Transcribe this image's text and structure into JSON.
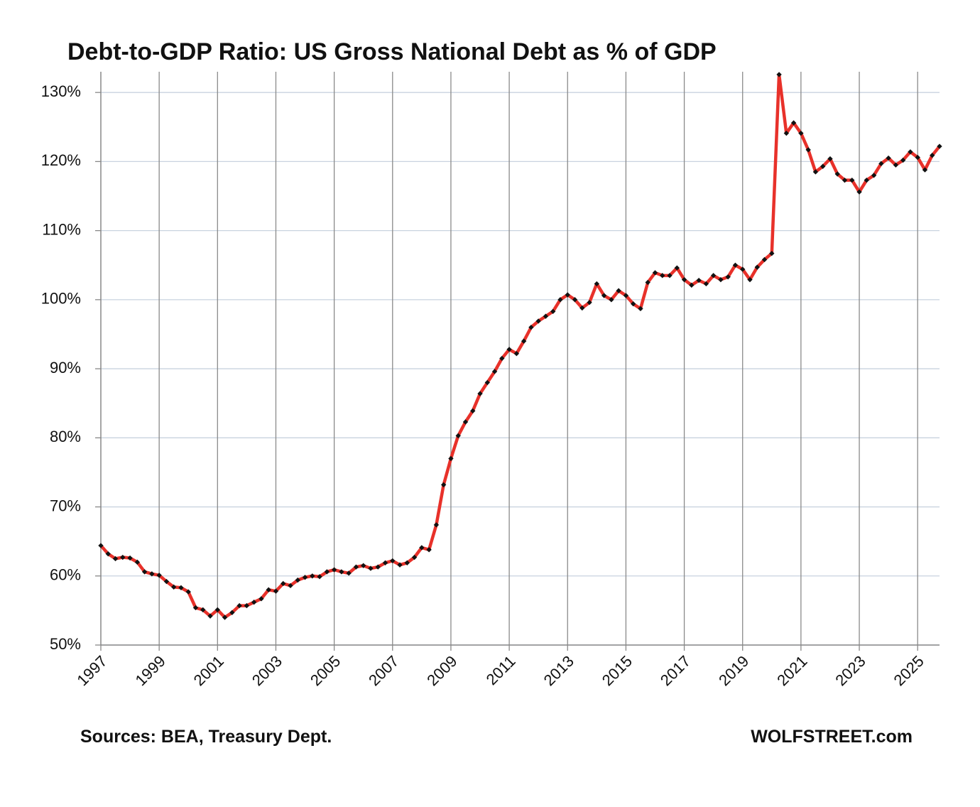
{
  "chart_data": {
    "type": "line",
    "title": "Debt-to-GDP Ratio: US Gross National Debt as % of GDP",
    "source": "Sources: BEA, Treasury Dept.",
    "credit": "WOLFSTREET.com",
    "categories": [
      "1997",
      null,
      null,
      null,
      null,
      null,
      null,
      null,
      "1999",
      null,
      null,
      null,
      null,
      null,
      null,
      null,
      "2001",
      null,
      null,
      null,
      null,
      null,
      null,
      null,
      "2003",
      null,
      null,
      null,
      null,
      null,
      null,
      null,
      "2005",
      null,
      null,
      null,
      null,
      null,
      null,
      null,
      "2007",
      null,
      null,
      null,
      null,
      null,
      null,
      null,
      "2009",
      null,
      null,
      null,
      null,
      null,
      null,
      null,
      "2011",
      null,
      null,
      null,
      null,
      null,
      null,
      null,
      "2013",
      null,
      null,
      null,
      null,
      null,
      null,
      null,
      "2015",
      null,
      null,
      null,
      null,
      null,
      null,
      null,
      "2017",
      null,
      null,
      null,
      null,
      null,
      null,
      null,
      "2019",
      null,
      null,
      null,
      null,
      null,
      null,
      null,
      "2021",
      null,
      null,
      null,
      null,
      null,
      null,
      null,
      "2023",
      null,
      null,
      null,
      null,
      null,
      null,
      null,
      "2025",
      null,
      null,
      null
    ],
    "values": [
      64.4,
      63.2,
      62.5,
      62.7,
      62.6,
      62.0,
      60.6,
      60.3,
      60.1,
      59.2,
      58.4,
      58.3,
      57.7,
      55.4,
      55.1,
      54.2,
      55.1,
      54.0,
      54.7,
      55.7,
      55.7,
      56.2,
      56.7,
      58.0,
      57.8,
      58.9,
      58.6,
      59.4,
      59.8,
      60.0,
      59.9,
      60.6,
      60.9,
      60.6,
      60.4,
      61.3,
      61.5,
      61.1,
      61.3,
      61.9,
      62.2,
      61.6,
      61.9,
      62.7,
      64.1,
      63.8,
      67.4,
      73.2,
      77.0,
      80.3,
      82.3,
      83.9,
      86.4,
      88.0,
      89.6,
      91.5,
      92.8,
      92.2,
      94.0,
      96.0,
      96.9,
      97.6,
      98.3,
      100.0,
      100.7,
      100.0,
      98.8,
      99.6,
      102.3,
      100.6,
      100.0,
      101.3,
      100.6,
      99.4,
      98.7,
      102.5,
      103.9,
      103.5,
      103.5,
      104.6,
      102.9,
      102.1,
      102.8,
      102.3,
      103.5,
      102.9,
      103.3,
      105.0,
      104.4,
      102.9,
      104.7,
      105.8,
      106.7,
      132.6,
      124.1,
      125.6,
      124.1,
      121.7,
      118.5,
      119.3,
      120.4,
      118.2,
      117.3,
      117.3,
      115.6,
      117.3,
      118.0,
      119.7,
      120.5,
      119.5,
      120.2,
      121.4,
      120.6,
      118.8,
      120.9,
      122.2
    ],
    "color": "#e8312a",
    "marker_color": "#111111",
    "ylim": [
      50,
      133
    ],
    "yticks": [
      {
        "value": 50,
        "label": "50%"
      },
      {
        "value": 60,
        "label": "60%"
      },
      {
        "value": 70,
        "label": "70%"
      },
      {
        "value": 80,
        "label": "80%"
      },
      {
        "value": 90,
        "label": "90%"
      },
      {
        "value": 100,
        "label": "100%"
      },
      {
        "value": 110,
        "label": "110%"
      },
      {
        "value": 120,
        "label": "120%"
      },
      {
        "value": 130,
        "label": "130%"
      }
    ],
    "grid": true
  }
}
